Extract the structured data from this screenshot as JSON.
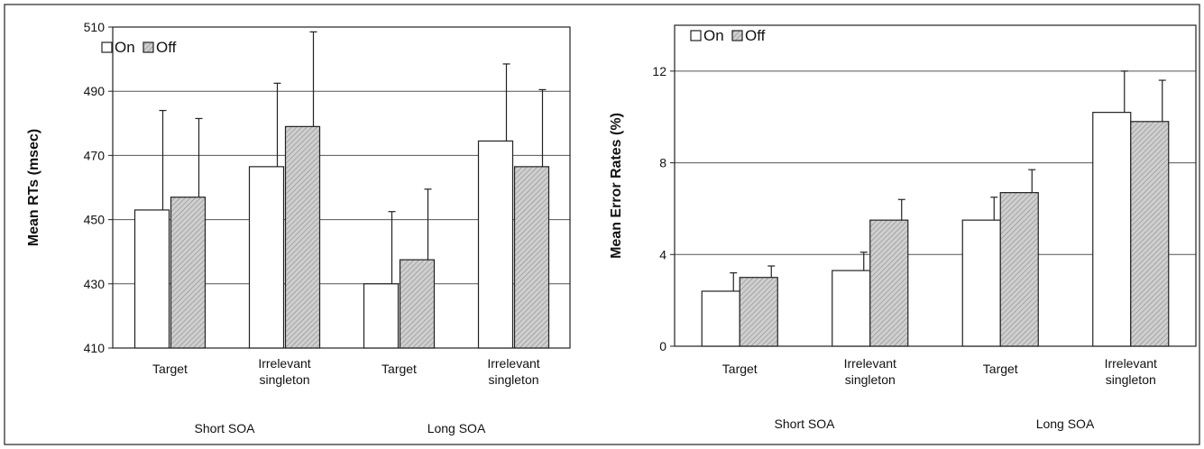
{
  "chart_data": [
    {
      "type": "bar",
      "ylabel": "Mean RTs (msec)",
      "ylim": [
        410,
        510
      ],
      "yticks": [
        410,
        430,
        450,
        470,
        490,
        510
      ],
      "grid": true,
      "legend_position": "top-left",
      "categories": [
        "Target",
        "Irrelevant singleton",
        "Target",
        "Irrelevant singleton"
      ],
      "groups": [
        "Short SOA",
        "Long SOA"
      ],
      "series": [
        {
          "name": "On",
          "values": [
            453,
            466.5,
            430,
            474.5
          ],
          "errors": [
            31,
            26,
            22.5,
            24
          ],
          "color": "#ffffff"
        },
        {
          "name": "Off",
          "values": [
            457,
            479,
            437.5,
            466.5
          ],
          "errors": [
            24.5,
            29.5,
            22,
            24
          ],
          "color": "#c8c8c8"
        }
      ]
    },
    {
      "type": "bar",
      "ylabel": "Mean Error Rates (%)",
      "ylim": [
        0,
        14
      ],
      "yticks": [
        0,
        4,
        8,
        12
      ],
      "grid": true,
      "legend_position": "top-left",
      "categories": [
        "Target",
        "Irrelevant singleton",
        "Target",
        "Irrelevant singleton"
      ],
      "groups": [
        "Short SOA",
        "Long SOA"
      ],
      "series": [
        {
          "name": "On",
          "values": [
            2.4,
            3.3,
            5.5,
            10.2
          ],
          "errors": [
            0.8,
            0.8,
            1.0,
            1.8
          ],
          "color": "#ffffff"
        },
        {
          "name": "Off",
          "values": [
            3.0,
            5.5,
            6.7,
            9.8
          ],
          "errors": [
            0.5,
            0.9,
            1.0,
            1.8
          ],
          "color": "#c8c8c8"
        }
      ]
    }
  ]
}
